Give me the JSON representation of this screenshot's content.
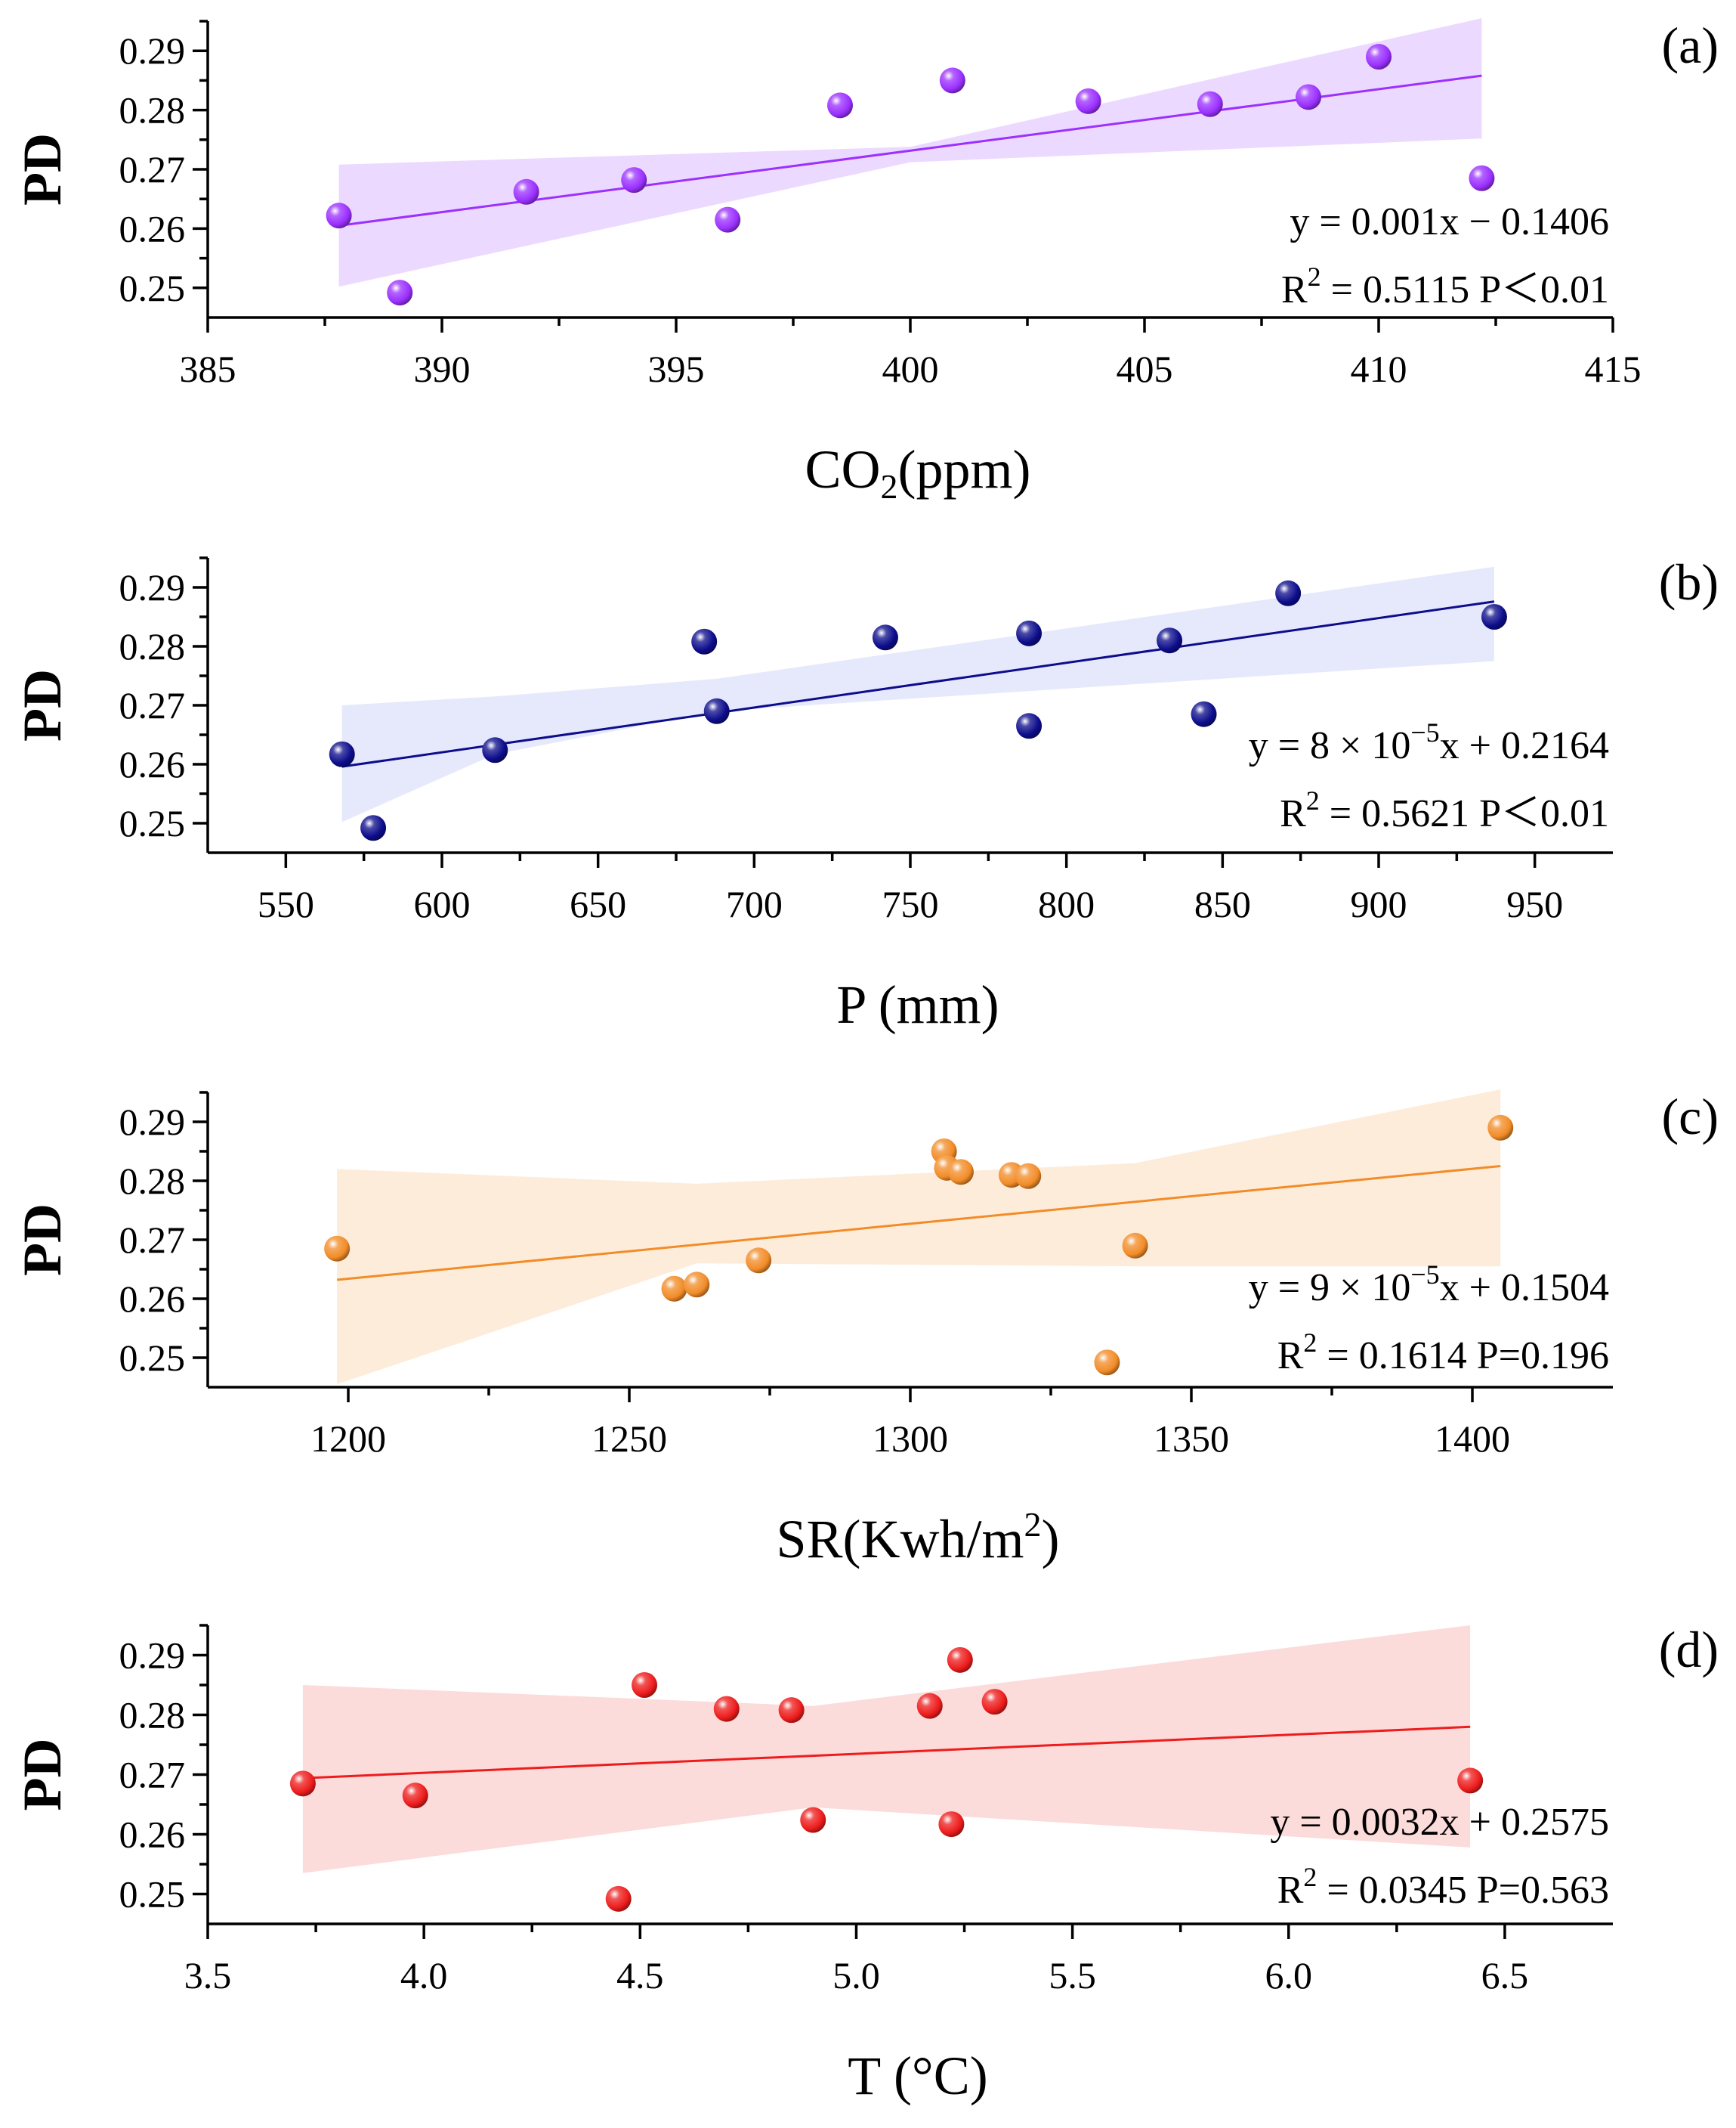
{
  "chart_data": [
    {
      "type": "scatter",
      "panel": "(a)",
      "ylabel": "PD",
      "xlabel": "CO",
      "xlabel_sub": "2",
      "xlabel_tail": "(ppm)",
      "color": "#9b30ff",
      "band_color": "#e6ccff",
      "xlim": [
        385,
        415
      ],
      "ylim": [
        0.245,
        0.295
      ],
      "xticks": [
        "385",
        "390",
        "395",
        "400",
        "405",
        "410",
        "415"
      ],
      "xtick_values": [
        385,
        390,
        395,
        400,
        405,
        410,
        415
      ],
      "yticks": [
        "0.25",
        "0.26",
        "0.27",
        "0.28",
        "0.29"
      ],
      "ytick_values": [
        0.25,
        0.26,
        0.27,
        0.28,
        0.29
      ],
      "x": [
        387.8,
        389.1,
        391.8,
        394.1,
        396.1,
        398.5,
        400.9,
        403.8,
        406.4,
        408.5,
        410.0,
        412.2
      ],
      "y": [
        0.2622,
        0.2492,
        0.2662,
        0.2682,
        0.2615,
        0.2808,
        0.285,
        0.2815,
        0.281,
        0.2822,
        0.289,
        0.2685
      ],
      "fit": {
        "x": [
          387.8,
          412.2
        ],
        "y": [
          0.2605,
          0.2858
        ]
      },
      "band": {
        "x": [
          387.8,
          400.0,
          412.2
        ],
        "upper": [
          0.2708,
          0.2738,
          0.2955
        ],
        "lower": [
          0.2502,
          0.2712,
          0.2752
        ]
      },
      "equation": "y = 0.001x − 0.1406",
      "r2_label": "R",
      "r2_sup": "2",
      "r2_text": " = 0.5115 P＜0.01"
    },
    {
      "type": "scatter",
      "panel": "(b)",
      "ylabel": "PD",
      "xlabel": "P (mm)",
      "color": "#0d0d8c",
      "band_color": "#dde2fb",
      "xlim": [
        525,
        975
      ],
      "ylim": [
        0.245,
        0.295
      ],
      "xticks": [
        "550",
        "600",
        "650",
        "700",
        "750",
        "800",
        "850",
        "900",
        "950"
      ],
      "xtick_values": [
        550,
        600,
        650,
        700,
        750,
        800,
        850,
        900,
        950
      ],
      "yticks": [
        "0.25",
        "0.26",
        "0.27",
        "0.28",
        "0.29"
      ],
      "ytick_values": [
        0.25,
        0.26,
        0.27,
        0.28,
        0.29
      ],
      "x": [
        568,
        578,
        617,
        684,
        688,
        742,
        788,
        788,
        833,
        844,
        871,
        937
      ],
      "y": [
        0.2617,
        0.2492,
        0.2624,
        0.2808,
        0.269,
        0.2815,
        0.2822,
        0.2665,
        0.281,
        0.2685,
        0.289,
        0.285
      ],
      "fit": {
        "x": [
          568,
          937
        ],
        "y": [
          0.2596,
          0.2876
        ]
      },
      "band": {
        "x": [
          568,
          617,
          688,
          937
        ],
        "upper": [
          0.27,
          0.2715,
          0.2745,
          0.2935
        ],
        "lower": [
          0.2502,
          0.2617,
          0.269,
          0.2775
        ]
      },
      "equation_parts": [
        "y = 8 × 10",
        "−5",
        "x + 0.2164"
      ],
      "r2_label": "R",
      "r2_sup": "2",
      "r2_text": " = 0.5621  P＜0.01"
    },
    {
      "type": "scatter",
      "panel": "(c)",
      "ylabel": "PD",
      "xlabel": "SR(Kwh/m",
      "xlabel_sup": "2",
      "xlabel_tail": ")",
      "color": "#f28c28",
      "band_color": "#fde6cf",
      "xlim": [
        1175,
        1425
      ],
      "ylim": [
        0.245,
        0.295
      ],
      "xticks": [
        "1200",
        "1250",
        "1300",
        "1350",
        "1400"
      ],
      "xtick_values": [
        1200,
        1250,
        1300,
        1350,
        1400
      ],
      "yticks": [
        "0.25",
        "0.26",
        "0.27",
        "0.28",
        "0.29"
      ],
      "ytick_values": [
        0.25,
        0.26,
        0.27,
        0.28,
        0.29
      ],
      "x": [
        1198,
        1258,
        1262,
        1273,
        1306,
        1306.5,
        1309,
        1318,
        1321,
        1335,
        1340,
        1405
      ],
      "y": [
        0.2685,
        0.2617,
        0.2624,
        0.2665,
        0.285,
        0.2822,
        0.2815,
        0.281,
        0.2808,
        0.2492,
        0.269,
        0.289
      ],
      "fit": {
        "x": [
          1198,
          1405
        ],
        "y": [
          0.2632,
          0.2825
        ]
      },
      "band": {
        "x": [
          1198,
          1262,
          1340,
          1405
        ],
        "upper": [
          0.282,
          0.2795,
          0.283,
          0.2955
        ],
        "lower": [
          0.2455,
          0.266,
          0.2655,
          0.2655
        ]
      },
      "equation_parts": [
        "y = 9 × 10",
        "−5",
        "x + 0.1504"
      ],
      "r2_label": "R",
      "r2_sup": "2",
      "r2_text": " = 0.1614 P=0.196"
    },
    {
      "type": "scatter",
      "panel": "(d)",
      "ylabel": "PD",
      "xlabel": "T (°C)",
      "color": "#ee1c1c",
      "band_color": "#fbcfcf",
      "xlim": [
        3.5,
        6.75
      ],
      "ylim": [
        0.245,
        0.295
      ],
      "xticks": [
        "3.5",
        "4.0",
        "4.5",
        "5.0",
        "5.5",
        "6.0",
        "6.5"
      ],
      "xtick_values": [
        3.5,
        4.0,
        4.5,
        5.0,
        5.5,
        6.0,
        6.5
      ],
      "yticks": [
        "0.25",
        "0.26",
        "0.27",
        "0.28",
        "0.29"
      ],
      "ytick_values": [
        0.25,
        0.26,
        0.27,
        0.28,
        0.29
      ],
      "x": [
        3.72,
        3.98,
        4.45,
        4.51,
        4.7,
        4.85,
        4.9,
        5.17,
        5.22,
        5.24,
        5.32,
        6.42
      ],
      "y": [
        0.2685,
        0.2665,
        0.2492,
        0.285,
        0.281,
        0.2808,
        0.2624,
        0.2815,
        0.2617,
        0.2892,
        0.2822,
        0.269
      ],
      "fit": {
        "x": [
          3.72,
          6.42
        ],
        "y": [
          0.2694,
          0.278
        ]
      },
      "band": {
        "x": [
          3.72,
          4.9,
          6.42
        ],
        "upper": [
          0.285,
          0.2815,
          0.295
        ],
        "lower": [
          0.2535,
          0.2645,
          0.2578
        ]
      },
      "equation": "y = 0.0032x + 0.2575",
      "r2_label": "R",
      "r2_sup": "2",
      "r2_text": " = 0.0345 P=0.563"
    }
  ]
}
